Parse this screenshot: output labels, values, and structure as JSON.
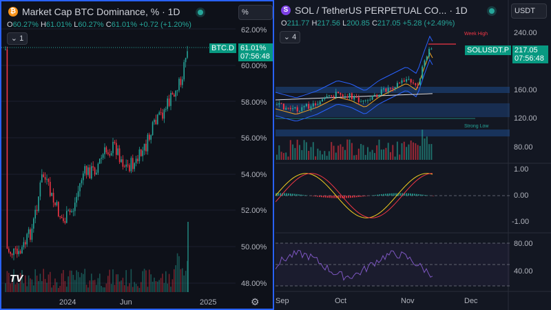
{
  "colors": {
    "up": "#26a69a",
    "down": "#f23645",
    "accent": "#2962ff",
    "bg": "#131722"
  },
  "left": {
    "title": "Market Cap BTC Dominance, % · 1D",
    "ohlc": {
      "o_k": "O",
      "o": "60.27%",
      "h_k": "H",
      "h": "61.01%",
      "l_k": "L",
      "l": "60.27%",
      "c_k": "C",
      "c": "61.01%",
      "chg": "+0.72 (+1.20%)"
    },
    "collapse_label": "1",
    "scale_button": "%",
    "price_axis": [
      "62.00%",
      "60.00%",
      "58.00%",
      "56.00%",
      "54.00%",
      "52.00%",
      "50.00%",
      "48.00%"
    ],
    "time_axis": [
      "2024",
      "Jun",
      "2025"
    ],
    "symbol_tag": "BTC.D",
    "price_tag": "61.01%",
    "countdown": "07:56:48",
    "logo": "TV"
  },
  "right": {
    "title": "SOL / TetherUS PERPETUAL CO... · 1D",
    "ohlc": {
      "o_k": "O",
      "o": "211.77",
      "h_k": "H",
      "h": "217.56",
      "l_k": "L",
      "l": "200.85",
      "c_k": "C",
      "c": "217.05",
      "chg": "+5.28 (+2.49%)"
    },
    "currency_button": "USDT",
    "collapse_label": "4",
    "price_axis": [
      "240.00",
      "160.00",
      "120.00",
      "80.00"
    ],
    "osc_axis": [
      "1.00",
      "0.00",
      "-1.00"
    ],
    "rsi_axis": [
      "80.00",
      "40.00"
    ],
    "time_axis": [
      "Sep",
      "Oct",
      "Nov",
      "Dec"
    ],
    "symbol_tag": "SOLUSDT.P",
    "price_tag": "217.05",
    "countdown": "07:56:48",
    "week_high": "Week High",
    "strong_low": "Strong Low"
  },
  "icons": [
    "bitcoin-icon",
    "solana-icon",
    "live-dot-icon",
    "settings-icon"
  ]
}
